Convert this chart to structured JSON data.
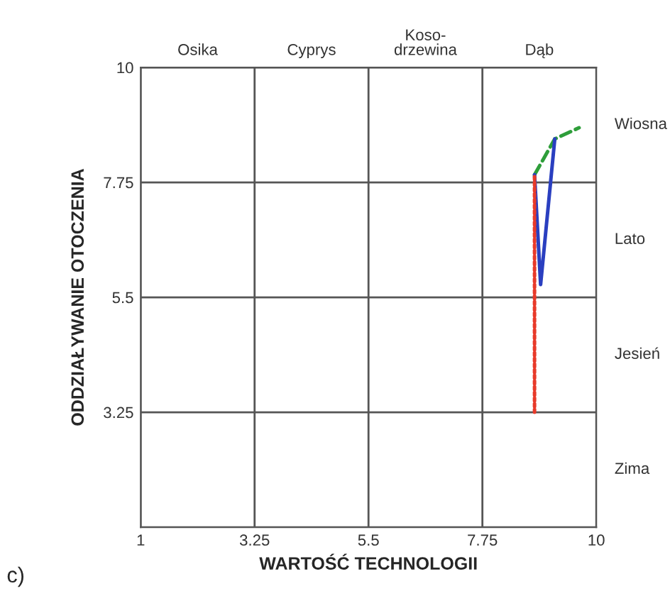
{
  "chart_data": {
    "type": "line",
    "xlabel": "WARTOŚĆ TECHNOLOGII",
    "ylabel": "ODDZIAŁYWANIE OTOCZENIA",
    "annotations": [
      "c)",
      "Osika",
      "Cyprys",
      "Koso-\ndrzewina",
      "Dąb",
      "Wiosna",
      "Lato",
      "Jesień",
      "Zima"
    ],
    "series": [
      {
        "color": "#e83a2a",
        "line_style": "dotted",
        "x": [
          8.78,
          8.78
        ],
        "values": [
          3.25,
          7.9
        ]
      },
      {
        "color": "#2a3fc0",
        "line_style": "solid",
        "x": [
          8.78,
          8.9,
          9.18
        ],
        "values": [
          7.9,
          5.75,
          8.6
        ]
      },
      {
        "color": "#2e9e3a",
        "line_style": "dashed",
        "x": [
          8.78,
          9.18,
          9.66
        ],
        "values": [
          7.9,
          8.6,
          8.82
        ]
      }
    ],
    "xlim": [
      1,
      10
    ],
    "ylim": [
      1,
      10
    ],
    "xticks": [
      1,
      3.25,
      5.5,
      7.75,
      10
    ],
    "yticks": [
      {
        "value": 1,
        "label": null
      },
      3.25,
      5.5,
      7.75,
      10
    ],
    "grid": true,
    "legend": false
  }
}
